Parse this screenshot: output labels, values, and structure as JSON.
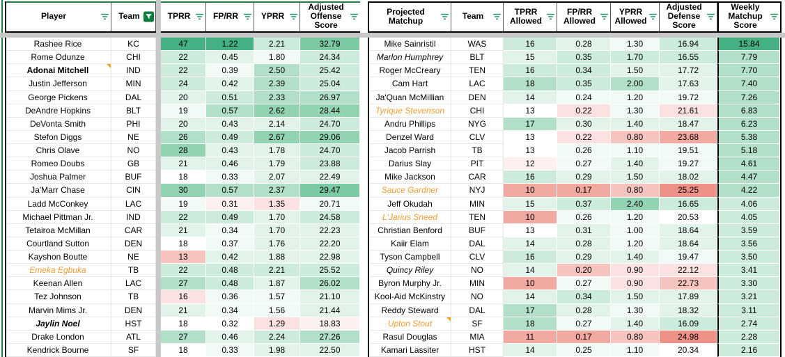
{
  "colors": {
    "range_border_green": "#1b7f41",
    "filter_active_green": "#0e7b3f",
    "filter_icon_green": "#2d9b66",
    "orange_text": "#f59b31",
    "note_orange": "#f5a41f",
    "divider_gray": "#c8c8c8",
    "grid_line": "#e4e7e4",
    "tone_g6": "#45b182",
    "tone_g5": "#7ccaa4",
    "tone_g4": "#92d4b2",
    "tone_g3": "#b2dfc7",
    "tone_g2": "#cdebdb",
    "tone_g1": "#e2f3ea",
    "tone_g0": "#f2faf6",
    "tone_w": "#ffffff",
    "tone_r1": "#fdf1f0",
    "tone_r2": "#fbe2e0",
    "tone_r3": "#f5c4be",
    "tone_r4": "#f1a9a1",
    "tone_r5": "#ee9288"
  },
  "left_table": {
    "columns": [
      {
        "label": "Player",
        "filter": "inactive"
      },
      {
        "label": "Team",
        "filter": "active"
      },
      {
        "label": "TPRR",
        "filter": "inactive"
      },
      {
        "label": "FP/RR",
        "filter": "inactive"
      },
      {
        "label": "YPRR",
        "filter": "inactive"
      },
      {
        "label": "Adjusted\nOffense\nScore",
        "filter": "inactive"
      }
    ],
    "rows": [
      {
        "cells": [
          "Rashee Rice",
          "KC",
          "47",
          "1.22",
          "2.21",
          "32.79"
        ],
        "tones": [
          "",
          "",
          "g6",
          "g6",
          "g2",
          "g5"
        ],
        "name_style": "",
        "note": false
      },
      {
        "cells": [
          "Rome Odunze",
          "CHI",
          "22",
          "0.45",
          "1.80",
          "24.34"
        ],
        "tones": [
          "",
          "",
          "g2",
          "g1",
          "g0",
          "g2"
        ],
        "name_style": "",
        "note": false
      },
      {
        "cells": [
          "Adonai Mitchell",
          "IND",
          "22",
          "0.39",
          "2.50",
          "25.42"
        ],
        "tones": [
          "",
          "",
          "g2",
          "g0",
          "g3",
          "g2"
        ],
        "name_style": "bold",
        "note": true
      },
      {
        "cells": [
          "Justin Jefferson",
          "MIN",
          "24",
          "0.42",
          "2.39",
          "25.04"
        ],
        "tones": [
          "",
          "",
          "g2",
          "g1",
          "g3",
          "g2"
        ],
        "name_style": "",
        "note": false
      },
      {
        "cells": [
          "George Pickens",
          "DAL",
          "20",
          "0.51",
          "2.33",
          "26.97"
        ],
        "tones": [
          "",
          "",
          "g1",
          "g2",
          "g3",
          "g3"
        ],
        "name_style": "",
        "note": false
      },
      {
        "cells": [
          "DeAndre Hopkins",
          "BLT",
          "19",
          "0.57",
          "2.62",
          "28.44"
        ],
        "tones": [
          "",
          "",
          "g0",
          "g3",
          "g4",
          "g4"
        ],
        "name_style": "",
        "note": false
      },
      {
        "cells": [
          "DeVonta Smith",
          "PHI",
          "20",
          "0.43",
          "2.14",
          "24.70"
        ],
        "tones": [
          "",
          "",
          "g1",
          "g1",
          "g1",
          "g2"
        ],
        "name_style": "",
        "note": false
      },
      {
        "cells": [
          "Stefon Diggs",
          "NE",
          "26",
          "0.49",
          "2.67",
          "29.06"
        ],
        "tones": [
          "",
          "",
          "g3",
          "g2",
          "g4",
          "g4"
        ],
        "name_style": "",
        "note": false
      },
      {
        "cells": [
          "Chris Olave",
          "NO",
          "28",
          "0.43",
          "1.78",
          "24.70"
        ],
        "tones": [
          "",
          "",
          "g4",
          "g1",
          "g1",
          "g2"
        ],
        "name_style": "",
        "note": false
      },
      {
        "cells": [
          "Romeo Doubs",
          "GB",
          "21",
          "0.46",
          "1.79",
          "23.88"
        ],
        "tones": [
          "",
          "",
          "g1",
          "g1",
          "g1",
          "g2"
        ],
        "name_style": "",
        "note": false
      },
      {
        "cells": [
          "Joshua Palmer",
          "BUF",
          "18",
          "0.33",
          "2.07",
          "22.49"
        ],
        "tones": [
          "",
          "",
          "w",
          "g0",
          "g1",
          "g1"
        ],
        "name_style": "",
        "note": false
      },
      {
        "cells": [
          "Ja'Marr Chase",
          "CIN",
          "30",
          "0.57",
          "2.37",
          "29.47"
        ],
        "tones": [
          "",
          "",
          "g4",
          "g3",
          "g3",
          "g5"
        ],
        "name_style": "",
        "note": false
      },
      {
        "cells": [
          "Ladd McConkey",
          "LAC",
          "19",
          "0.31",
          "1.35",
          "20.71"
        ],
        "tones": [
          "",
          "",
          "g0",
          "r1",
          "r2",
          "g0"
        ],
        "name_style": "",
        "note": false
      },
      {
        "cells": [
          "Michael Pittman Jr.",
          "IND",
          "22",
          "0.49",
          "1.70",
          "24.58"
        ],
        "tones": [
          "",
          "",
          "g2",
          "g2",
          "g1",
          "g2"
        ],
        "name_style": "",
        "note": false
      },
      {
        "cells": [
          "Tetairoa McMillan",
          "CAR",
          "21",
          "0.34",
          "1.70",
          "22.23"
        ],
        "tones": [
          "",
          "",
          "g1",
          "g0",
          "g1",
          "g1"
        ],
        "name_style": "",
        "note": false
      },
      {
        "cells": [
          "Courtland Sutton",
          "DEN",
          "18",
          "0.37",
          "1.76",
          "22.20"
        ],
        "tones": [
          "",
          "",
          "w",
          "g0",
          "g1",
          "g1"
        ],
        "name_style": "",
        "note": false
      },
      {
        "cells": [
          "Kayshon Boutte",
          "NE",
          "13",
          "0.42",
          "1.88",
          "22.98"
        ],
        "tones": [
          "",
          "",
          "r3",
          "g1",
          "g1",
          "g1"
        ],
        "name_style": "",
        "note": false
      },
      {
        "cells": [
          "Emeka Egbuka",
          "TB",
          "22",
          "0.48",
          "2.21",
          "25.52"
        ],
        "tones": [
          "",
          "",
          "g2",
          "g2",
          "g2",
          "g2"
        ],
        "name_style": "orange-italic",
        "note": false
      },
      {
        "cells": [
          "Keenan Allen",
          "LAC",
          "27",
          "0.48",
          "1.87",
          "26.02"
        ],
        "tones": [
          "",
          "",
          "g3",
          "g2",
          "g1",
          "g3"
        ],
        "name_style": "",
        "note": false
      },
      {
        "cells": [
          "Tez Johnson",
          "TB",
          "16",
          "0.36",
          "1.57",
          "21.10"
        ],
        "tones": [
          "",
          "",
          "r2",
          "g0",
          "g0",
          "g1"
        ],
        "name_style": "",
        "note": false
      },
      {
        "cells": [
          "Marvin Mims Jr.",
          "DEN",
          "21",
          "0.34",
          "1.56",
          "21.44"
        ],
        "tones": [
          "",
          "",
          "g1",
          "g0",
          "g0",
          "g1"
        ],
        "name_style": "",
        "note": false
      },
      {
        "cells": [
          "Jaylin Noel",
          "HST",
          "18",
          "0.32",
          "1.29",
          "18.83"
        ],
        "tones": [
          "",
          "",
          "w",
          "w",
          "r2",
          "r1"
        ],
        "name_style": "bold-italic",
        "note": false
      },
      {
        "cells": [
          "Drake London",
          "ATL",
          "27",
          "0.46",
          "2.24",
          "27.26"
        ],
        "tones": [
          "",
          "",
          "g3",
          "g1",
          "g2",
          "g3"
        ],
        "name_style": "",
        "note": false
      },
      {
        "cells": [
          "Kendrick Bourne",
          "SF",
          "18",
          "0.33",
          "1.98",
          "22.50"
        ],
        "tones": [
          "",
          "",
          "w",
          "g0",
          "g1",
          "g1"
        ],
        "name_style": "",
        "note": false
      }
    ]
  },
  "right_table": {
    "columns": [
      {
        "label": "Projected Matchup",
        "filter": "inactive"
      },
      {
        "label": "Team",
        "filter": "inactive"
      },
      {
        "label": "TPRR\nAllowed",
        "filter": "inactive"
      },
      {
        "label": "FP/RR\nAllowed",
        "filter": "inactive"
      },
      {
        "label": "YPRR\nAllowed",
        "filter": "inactive"
      },
      {
        "label": "Adjusted\nDefense\nScore",
        "filter": "inactive"
      },
      {
        "label": "Weekly\nMatchup\nScore",
        "filter": "inactive"
      }
    ],
    "rows": [
      {
        "cells": [
          "Mike Sainristil",
          "WAS",
          "16",
          "0.28",
          "1.30",
          "16.94",
          "15.84"
        ],
        "tones": [
          "",
          "",
          "g2",
          "g1",
          "g0",
          "g2",
          "g6"
        ],
        "name_style": "",
        "note": false
      },
      {
        "cells": [
          "Marlon Humphrey",
          "BLT",
          "15",
          "0.35",
          "1.70",
          "16.55",
          "7.79"
        ],
        "tones": [
          "",
          "",
          "g1",
          "g2",
          "g2",
          "g2",
          "g3"
        ],
        "name_style": "italic",
        "note": false
      },
      {
        "cells": [
          "Roger McCreary",
          "TEN",
          "16",
          "0.34",
          "1.50",
          "17.72",
          "7.70"
        ],
        "tones": [
          "",
          "",
          "g2",
          "g2",
          "g1",
          "g1",
          "g3"
        ],
        "name_style": "",
        "note": false
      },
      {
        "cells": [
          "Cam Hart",
          "LAC",
          "18",
          "0.35",
          "2.00",
          "17.63",
          "7.40"
        ],
        "tones": [
          "",
          "",
          "g3",
          "g2",
          "g3",
          "g1",
          "g3"
        ],
        "name_style": "",
        "note": false
      },
      {
        "cells": [
          "Ja'Quan McMillian",
          "DEN",
          "14",
          "0.24",
          "1.20",
          "19.72",
          "7.26"
        ],
        "tones": [
          "",
          "",
          "g1",
          "g0",
          "g0",
          "g0",
          "g3"
        ],
        "name_style": "",
        "note": false
      },
      {
        "cells": [
          "Tyrique Stevenson",
          "CHI",
          "13",
          "0.22",
          "1.30",
          "21.61",
          "6.83"
        ],
        "tones": [
          "",
          "",
          "w",
          "r2",
          "g0",
          "r2",
          "g3"
        ],
        "name_style": "orange-italic",
        "note": false
      },
      {
        "cells": [
          "Andru Phillips",
          "NYG",
          "17",
          "0.30",
          "1.40",
          "18.47",
          "6.23"
        ],
        "tones": [
          "",
          "",
          "g3",
          "g1",
          "g1",
          "g1",
          "g3"
        ],
        "name_style": "",
        "note": false
      },
      {
        "cells": [
          "Denzel Ward",
          "CLV",
          "13",
          "0.22",
          "0.80",
          "23.68",
          "5.38"
        ],
        "tones": [
          "",
          "",
          "w",
          "r2",
          "r3",
          "r4",
          "g3"
        ],
        "name_style": "",
        "note": false
      },
      {
        "cells": [
          "Jacob Parrish",
          "TB",
          "13",
          "0.26",
          "1.10",
          "19.51",
          "5.18"
        ],
        "tones": [
          "",
          "",
          "w",
          "g0",
          "g0",
          "g0",
          "g3"
        ],
        "name_style": "",
        "note": false
      },
      {
        "cells": [
          "Darius Slay",
          "PIT",
          "12",
          "0.27",
          "1.40",
          "19.27",
          "4.61"
        ],
        "tones": [
          "",
          "",
          "r1",
          "g0",
          "g1",
          "g0",
          "g3"
        ],
        "name_style": "",
        "note": false
      },
      {
        "cells": [
          "Mike Jackson",
          "CAR",
          "16",
          "0.29",
          "1.50",
          "18.02",
          "4.47"
        ],
        "tones": [
          "",
          "",
          "g2",
          "g1",
          "g1",
          "g1",
          "g3"
        ],
        "name_style": "",
        "note": false
      },
      {
        "cells": [
          "Sauce Gardner",
          "NYJ",
          "10",
          "0.17",
          "0.80",
          "25.25",
          "4.22"
        ],
        "tones": [
          "",
          "",
          "r4",
          "r4",
          "r3",
          "r5",
          "g3"
        ],
        "name_style": "orange-italic",
        "note": false
      },
      {
        "cells": [
          "Jeff Okudah",
          "MIN",
          "15",
          "0.37",
          "2.40",
          "16.65",
          "4.06"
        ],
        "tones": [
          "",
          "",
          "g1",
          "g2",
          "g4",
          "g2",
          "g2"
        ],
        "name_style": "",
        "note": false
      },
      {
        "cells": [
          "L'Jarius Sneed",
          "TEN",
          "10",
          "0.26",
          "1.20",
          "20.53",
          "4.05"
        ],
        "tones": [
          "",
          "",
          "r4",
          "g0",
          "g0",
          "w",
          "g2"
        ],
        "name_style": "orange-italic",
        "note": false
      },
      {
        "cells": [
          "Christian Benford",
          "BUF",
          "13",
          "0.31",
          "1.00",
          "18.64",
          "3.59"
        ],
        "tones": [
          "",
          "",
          "w",
          "g1",
          "g0",
          "g1",
          "g2"
        ],
        "name_style": "",
        "note": false
      },
      {
        "cells": [
          "Kaiir Elam",
          "DAL",
          "14",
          "0.28",
          "1.20",
          "18.64",
          "3.56"
        ],
        "tones": [
          "",
          "",
          "g1",
          "g1",
          "g0",
          "g1",
          "g2"
        ],
        "name_style": "",
        "note": false
      },
      {
        "cells": [
          "Tyson Campbell",
          "CLV",
          "16",
          "0.29",
          "1.40",
          "19.47",
          "3.50"
        ],
        "tones": [
          "",
          "",
          "g2",
          "g1",
          "g1",
          "g0",
          "g2"
        ],
        "name_style": "",
        "note": false
      },
      {
        "cells": [
          "Quincy Riley",
          "NO",
          "14",
          "0.20",
          "0.90",
          "22.12",
          "3.41"
        ],
        "tones": [
          "",
          "",
          "g1",
          "r3",
          "r2",
          "r2",
          "g2"
        ],
        "name_style": "italic",
        "note": false
      },
      {
        "cells": [
          "Byron Murphy Jr.",
          "MIN",
          "10",
          "0.27",
          "0.90",
          "22.73",
          "3.30"
        ],
        "tones": [
          "",
          "",
          "r4",
          "g0",
          "r2",
          "r3",
          "g2"
        ],
        "name_style": "",
        "note": false
      },
      {
        "cells": [
          "Kool-Aid McKinstry",
          "NO",
          "14",
          "0.34",
          "1.50",
          "17.89",
          "3.21"
        ],
        "tones": [
          "",
          "",
          "g1",
          "g2",
          "g1",
          "g1",
          "g2"
        ],
        "name_style": "",
        "note": false
      },
      {
        "cells": [
          "Reddy Steward",
          "DAL",
          "17",
          "0.28",
          "1.30",
          "18.32",
          "3.11"
        ],
        "tones": [
          "",
          "",
          "g3",
          "g1",
          "g0",
          "g1",
          "g2"
        ],
        "name_style": "",
        "note": false
      },
      {
        "cells": [
          "Upton Stout",
          "SF",
          "18",
          "0.27",
          "1.40",
          "16.09",
          "2.74"
        ],
        "tones": [
          "",
          "",
          "g3",
          "g0",
          "g1",
          "g2",
          "g2"
        ],
        "name_style": "orange-italic",
        "note": true
      },
      {
        "cells": [
          "Rasul Douglas",
          "MIA",
          "11",
          "0.17",
          "0.80",
          "24.98",
          "2.28"
        ],
        "tones": [
          "",
          "",
          "r4",
          "r4",
          "r3",
          "r5",
          "g2"
        ],
        "name_style": "",
        "note": false
      },
      {
        "cells": [
          "Kamari Lassiter",
          "HST",
          "14",
          "0.25",
          "1.10",
          "20.34",
          "2.16"
        ],
        "tones": [
          "",
          "",
          "g1",
          "g0",
          "g0",
          "w",
          "g2"
        ],
        "name_style": "",
        "note": false
      }
    ]
  }
}
